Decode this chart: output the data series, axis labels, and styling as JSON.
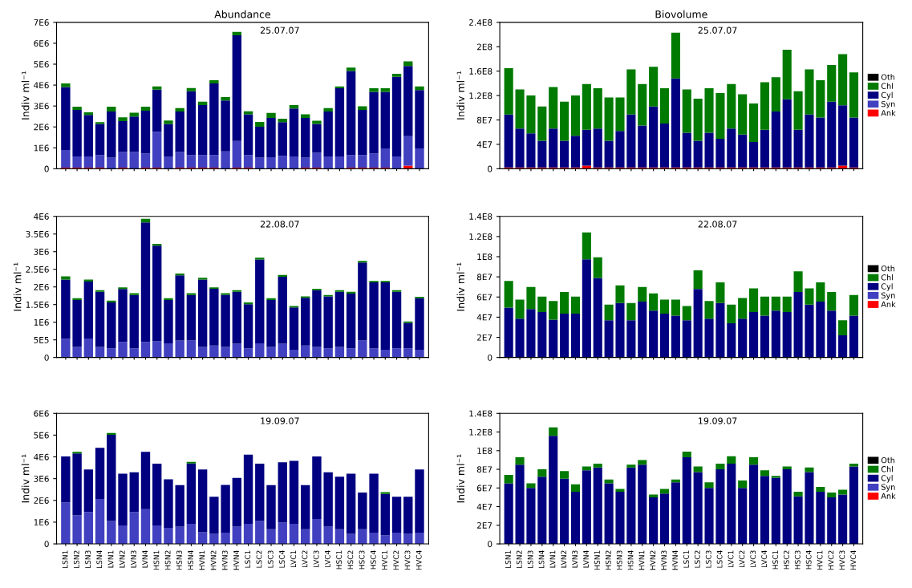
{
  "chart_data": [
    {
      "type": "bar",
      "stacked": true,
      "title": "Abundance",
      "ylabel": "Indiv ml⁻¹",
      "annotations": [
        "25.07.07"
      ],
      "tick_labels": "y",
      "categories": [
        null,
        null,
        null,
        null,
        null,
        null,
        null,
        null,
        null,
        null,
        null,
        null,
        null,
        null,
        null,
        null,
        null,
        null,
        null,
        null,
        null,
        null,
        null,
        null,
        null,
        null,
        null,
        null,
        null,
        null,
        null,
        null
      ],
      "ylim": [
        0,
        7000000.0
      ],
      "yticks": [
        0,
        {
          "value": 1000000.0,
          "label": "1E6"
        },
        {
          "value": 2000000.0,
          "label": "2E6"
        },
        {
          "value": 3000000.0,
          "label": "3E6"
        },
        {
          "value": 4000000.0,
          "label": "4E6"
        },
        {
          "value": 5000000.0,
          "label": "5E6"
        },
        {
          "value": 6000000.0,
          "label": "6E6"
        },
        {
          "value": 7000000.0,
          "label": "7E6"
        }
      ],
      "series": [
        {
          "color": "#ff0000",
          "values": [
            50000.0,
            50000.0,
            50000.0,
            50000.0,
            null,
            50000.0,
            null,
            50000.0,
            50000.0,
            null,
            50000.0,
            50000.0,
            50000.0,
            50000.0,
            null,
            50000.0,
            50000.0,
            null,
            null,
            null,
            null,
            50000.0,
            50000.0,
            null,
            null,
            50000.0,
            50000.0,
            50000.0,
            50000.0,
            null,
            150000.0,
            null
          ]
        },
        {
          "color": "#4040c0",
          "values": [
            850000.0,
            540000.0,
            540000.0,
            610000.0,
            530000.0,
            750000.0,
            800000.0,
            680000.0,
            1720000.0,
            590000.0,
            750000.0,
            610000.0,
            610000.0,
            610000.0,
            830000.0,
            1280000.0,
            610000.0,
            530000.0,
            550000.0,
            620000.0,
            590000.0,
            480000.0,
            720000.0,
            590000.0,
            590000.0,
            610000.0,
            610000.0,
            680000.0,
            920000.0,
            590000.0,
            1410000.0,
            970000.0
          ]
        },
        {
          "color": "#000080",
          "values": [
            3010000.0,
            2220000.0,
            1980000.0,
            1480000.0,
            2210000.0,
            1480000.0,
            1700000.0,
            2050000.0,
            2010000.0,
            1550000.0,
            1940000.0,
            3050000.0,
            2380000.0,
            3420000.0,
            2430000.0,
            5050000.0,
            1940000.0,
            1480000.0,
            1880000.0,
            1610000.0,
            2290000.0,
            1900000.0,
            1370000.0,
            2150000.0,
            3260000.0,
            4010000.0,
            2150000.0,
            2950000.0,
            2710000.0,
            3810000.0,
            3350000.0,
            2790000.0
          ]
        },
        {
          "color": "#007a00",
          "values": [
            170000.0,
            160000.0,
            130000.0,
            90000.0,
            230000.0,
            180000.0,
            180000.0,
            190000.0,
            160000.0,
            170000.0,
            160000.0,
            150000.0,
            170000.0,
            150000.0,
            170000.0,
            160000.0,
            150000.0,
            230000.0,
            240000.0,
            160000.0,
            160000.0,
            170000.0,
            160000.0,
            160000.0,
            90000.0,
            170000.0,
            180000.0,
            170000.0,
            170000.0,
            140000.0,
            220000.0,
            180000.0
          ]
        }
      ]
    },
    {
      "type": "bar",
      "stacked": true,
      "title": "Biovolume",
      "ylabel": "Indiv ml⁻¹",
      "annotations": [
        "25.07.07"
      ],
      "tick_labels": "y",
      "legend": "right",
      "categories": [
        null,
        null,
        null,
        null,
        null,
        null,
        null,
        null,
        null,
        null,
        null,
        null,
        null,
        null,
        null,
        null,
        null,
        null,
        null,
        null,
        null,
        null,
        null,
        null,
        null,
        null,
        null,
        null,
        null,
        null,
        null,
        null
      ],
      "ylim": [
        0,
        240000000.0
      ],
      "yticks": [
        0,
        {
          "value": 40000000.0,
          "label": "4E7"
        },
        {
          "value": 80000000.0,
          "label": "8E7"
        },
        {
          "value": 120000000.0,
          "label": "1.2E8"
        },
        {
          "value": 160000000.0,
          "label": "1.6E8"
        },
        {
          "value": 200000000.0,
          "label": "2E8"
        },
        {
          "value": 240000000.0,
          "label": "2.4E8"
        }
      ],
      "series": [
        {
          "name": "Ank",
          "color": "#ff0000",
          "values": [
            2000000.0,
            2000000.0,
            2000000.0,
            2000000.0,
            2000000.0,
            2000000.0,
            2000000.0,
            5000000.0,
            2000000.0,
            2000000.0,
            2000000.0,
            2000000.0,
            2000000.0,
            2000000.0,
            2000000.0,
            2000000.0,
            2000000.0,
            2000000.0,
            2000000.0,
            2000000.0,
            2000000.0,
            2000000.0,
            2000000.0,
            2000000.0,
            2000000.0,
            2000000.0,
            2000000.0,
            2000000.0,
            2000000.0,
            2000000.0,
            5000000.0,
            2000000.0
          ]
        },
        {
          "name": "Syn",
          "color": "#4040c0",
          "values": [
            null,
            null,
            null,
            null,
            null,
            null,
            null,
            null,
            null,
            null,
            null,
            null,
            null,
            null,
            null,
            null,
            null,
            null,
            null,
            null,
            null,
            null,
            null,
            null,
            null,
            null,
            null,
            null,
            null,
            null,
            null,
            null
          ]
        },
        {
          "name": "Cyl",
          "color": "#000080",
          "values": [
            87000000.0,
            64000000.0,
            56000000.0,
            44000000.0,
            64000000.0,
            44000000.0,
            52000000.0,
            59000000.0,
            64000000.0,
            44000000.0,
            60000000.0,
            87000000.0,
            69000000.0,
            100000000.0,
            72000000.0,
            146000000.0,
            57000000.0,
            44000000.0,
            57000000.0,
            47000000.0,
            64000000.0,
            54000000.0,
            42000000.0,
            62000000.0,
            92000000.0,
            112000000.0,
            62000000.0,
            87000000.0,
            82000000.0,
            108000000.0,
            99000000.0,
            82000000.0
          ]
        },
        {
          "name": "Chl",
          "color": "#007a00",
          "values": [
            76000000.0,
            64000000.0,
            62000000.0,
            56000000.0,
            68000000.0,
            64000000.0,
            66000000.0,
            75000000.0,
            66000000.0,
            71000000.0,
            55000000.0,
            74000000.0,
            68000000.0,
            65000000.0,
            58000000.0,
            75000000.0,
            71000000.0,
            69000000.0,
            73000000.0,
            75000000.0,
            73000000.0,
            66000000.0,
            63000000.0,
            78000000.0,
            56000000.0,
            81000000.0,
            63000000.0,
            74000000.0,
            61000000.0,
            60000000.0,
            84000000.0,
            74000000.0
          ]
        },
        {
          "name": "Oth",
          "color": "#000000",
          "values": [
            null,
            null,
            null,
            null,
            null,
            null,
            null,
            null,
            null,
            null,
            null,
            null,
            null,
            null,
            null,
            null,
            null,
            null,
            null,
            null,
            null,
            null,
            null,
            null,
            null,
            null,
            null,
            null,
            null,
            null,
            null,
            null
          ]
        }
      ]
    },
    {
      "type": "bar",
      "stacked": true,
      "ylabel": "Indiv ml⁻¹",
      "annotations": [
        "22.08.07"
      ],
      "tick_labels": "y",
      "categories": [
        null,
        null,
        null,
        null,
        null,
        null,
        null,
        null,
        null,
        null,
        null,
        null,
        null,
        null,
        null,
        null,
        null,
        null,
        null,
        null,
        null,
        null,
        null,
        null,
        null,
        null,
        null,
        null,
        null,
        null,
        null,
        null
      ],
      "ylim": [
        0,
        4000000.0
      ],
      "yticks": [
        0,
        {
          "value": 500000.0,
          "label": "5E5"
        },
        {
          "value": 1000000.0,
          "label": "1E6"
        },
        {
          "value": 1500000.0,
          "label": "1.5E6"
        },
        {
          "value": 2000000.0,
          "label": "2E6"
        },
        {
          "value": 2500000.0,
          "label": "2.5E6"
        },
        {
          "value": 3000000.0,
          "label": "3E6"
        },
        {
          "value": 3500000.0,
          "label": "3.5E6"
        },
        {
          "value": 4000000.0,
          "label": "4E6"
        }
      ],
      "series": [
        {
          "color": "#4040c0",
          "values": [
            530000.0,
            300000.0,
            540000.0,
            300000.0,
            260000.0,
            440000.0,
            260000.0,
            440000.0,
            460000.0,
            400000.0,
            480000.0,
            480000.0,
            300000.0,
            340000.0,
            300000.0,
            390000.0,
            260000.0,
            400000.0,
            300000.0,
            390000.0,
            220000.0,
            340000.0,
            300000.0,
            260000.0,
            300000.0,
            260000.0,
            480000.0,
            260000.0,
            220000.0,
            260000.0,
            260000.0,
            220000.0
          ]
        },
        {
          "color": "#000080",
          "values": [
            1680000.0,
            1330000.0,
            1610000.0,
            1560000.0,
            1300000.0,
            1500000.0,
            1510000.0,
            3390000.0,
            2710000.0,
            1230000.0,
            1850000.0,
            1290000.0,
            1910000.0,
            1610000.0,
            1480000.0,
            1470000.0,
            1250000.0,
            2380000.0,
            1330000.0,
            1900000.0,
            1200000.0,
            1350000.0,
            1610000.0,
            1470000.0,
            1560000.0,
            1550000.0,
            2210000.0,
            1870000.0,
            1910000.0,
            1600000.0,
            720000.0,
            1460000.0
          ]
        },
        {
          "color": "#007a00",
          "values": [
            90000.0,
            50000.0,
            60000.0,
            50000.0,
            50000.0,
            50000.0,
            50000.0,
            100000.0,
            50000.0,
            50000.0,
            50000.0,
            50000.0,
            50000.0,
            40000.0,
            40000.0,
            50000.0,
            50000.0,
            50000.0,
            50000.0,
            50000.0,
            40000.0,
            40000.0,
            40000.0,
            40000.0,
            50000.0,
            50000.0,
            50000.0,
            40000.0,
            40000.0,
            50000.0,
            40000.0,
            40000.0
          ]
        }
      ]
    },
    {
      "type": "bar",
      "stacked": true,
      "ylabel": "Indiv ml⁻¹",
      "annotations": [
        "22.08.07"
      ],
      "tick_labels": "y",
      "legend": "right",
      "categories": [
        null,
        null,
        null,
        null,
        null,
        null,
        null,
        null,
        null,
        null,
        null,
        null,
        null,
        null,
        null,
        null,
        null,
        null,
        null,
        null,
        null,
        null,
        null,
        null,
        null,
        null,
        null,
        null,
        null,
        null,
        null,
        null
      ],
      "ylim": [
        0,
        140000000.0
      ],
      "yticks": [
        0,
        {
          "value": 20000000.0,
          "label": "2E7"
        },
        {
          "value": 40000000.0,
          "label": "4E7"
        },
        {
          "value": 60000000.0,
          "label": "6E7"
        },
        {
          "value": 80000000.0,
          "label": "8E7"
        },
        {
          "value": 100000000.0,
          "label": "1E8"
        },
        {
          "value": 120000000.0,
          "label": "1.2E8"
        },
        {
          "value": 140000000.0,
          "label": "1.4E8"
        }
      ],
      "series": [
        {
          "name": "Ank",
          "color": "#ff0000",
          "values": [
            null,
            null,
            null,
            null,
            null,
            null,
            null,
            null,
            null,
            null,
            null,
            null,
            null,
            null,
            null,
            null,
            null,
            null,
            null,
            null,
            null,
            null,
            null,
            null,
            null,
            null,
            null,
            null,
            null,
            null,
            null,
            null
          ]
        },
        {
          "name": "Syn",
          "color": "#4040c0",
          "values": [
            null,
            null,
            null,
            null,
            null,
            null,
            null,
            null,
            null,
            null,
            null,
            null,
            null,
            null,
            null,
            null,
            null,
            null,
            null,
            null,
            null,
            null,
            null,
            null,
            null,
            null,
            null,
            null,
            null,
            null,
            null,
            null
          ]
        },
        {
          "name": "Cyl",
          "color": "#000080",
          "values": [
            49500000.0,
            38500000.0,
            48000000.0,
            45000000.0,
            37500000.0,
            43500000.0,
            43500000.0,
            97500000.0,
            79000000.0,
            37000000.0,
            54000000.0,
            37000000.0,
            55500000.0,
            46500000.0,
            43500000.0,
            41500000.0,
            37000000.0,
            68000000.0,
            38500000.0,
            54000000.0,
            34000000.0,
            38500000.0,
            45000000.0,
            41500000.0,
            46500000.0,
            45000000.0,
            65000000.0,
            52500000.0,
            55500000.0,
            46500000.0,
            22000000.0,
            41500000.0
          ]
        },
        {
          "name": "Chl",
          "color": "#007a00",
          "values": [
            26500000.0,
            19000000.0,
            22000000.0,
            15500000.0,
            18500000.0,
            21500000.0,
            17000000.0,
            26500000.0,
            20500000.0,
            15500000.0,
            17500000.0,
            17000000.0,
            14500000.0,
            17000000.0,
            14000000.0,
            16000000.0,
            14000000.0,
            18500000.0,
            17500000.0,
            20500000.0,
            18500000.0,
            20500000.0,
            23500000.0,
            19000000.0,
            14000000.0,
            15500000.0,
            20500000.0,
            16000000.0,
            19000000.0,
            18500000.0,
            15000000.0,
            20500000.0
          ]
        },
        {
          "name": "Oth",
          "color": "#000000",
          "values": [
            null,
            null,
            null,
            null,
            null,
            null,
            null,
            null,
            null,
            null,
            null,
            null,
            null,
            null,
            null,
            null,
            null,
            null,
            null,
            null,
            null,
            null,
            null,
            null,
            null,
            null,
            null,
            null,
            null,
            null,
            null,
            null
          ]
        }
      ]
    },
    {
      "type": "bar",
      "stacked": true,
      "ylabel": "Indiv ml⁻¹",
      "annotations": [
        "19.09.07"
      ],
      "categories": [
        "LSN1",
        "LSN2",
        "LSN3",
        "LSN4",
        "LVN1",
        "LVN2",
        "LVN3",
        "LVN4",
        "HSN1",
        "HSN2",
        "HSN3",
        "HSN4",
        "HVN1",
        "HVN2",
        "HVN3",
        "HVN4",
        "LSC1",
        "LSC2",
        "LSC3",
        "LSC4",
        "LVC1",
        "LVC2",
        "LVC3",
        "LVC4",
        "HSC1",
        "HSC2",
        "HSC3",
        "HSC4",
        "HVC1",
        "HVC2",
        "HVC3",
        "HVC4"
      ],
      "ylim": [
        0,
        6000000.0
      ],
      "yticks": [
        0,
        {
          "value": 1000000.0,
          "label": "1E6"
        },
        {
          "value": 2000000.0,
          "label": "2E6"
        },
        {
          "value": 3000000.0,
          "label": "3E6"
        },
        {
          "value": 4000000.0,
          "label": "4E6"
        },
        {
          "value": 5000000.0,
          "label": "5E6"
        },
        {
          "value": 6000000.0,
          "label": "6E6"
        }
      ],
      "series": [
        {
          "color": "#4040c0",
          "values": [
            1910000.0,
            1320000.0,
            1470000.0,
            2070000.0,
            1050000.0,
            850000.0,
            1470000.0,
            1600000.0,
            850000.0,
            740000.0,
            790000.0,
            920000.0,
            540000.0,
            460000.0,
            520000.0,
            790000.0,
            920000.0,
            1050000.0,
            670000.0,
            990000.0,
            920000.0,
            670000.0,
            1140000.0,
            790000.0,
            670000.0,
            460000.0,
            670000.0,
            520000.0,
            400000.0,
            520000.0,
            460000.0,
            520000.0
          ]
        },
        {
          "color": "#000080",
          "values": [
            2110000.0,
            2840000.0,
            1950000.0,
            2350000.0,
            3970000.0,
            2380000.0,
            1820000.0,
            2630000.0,
            2840000.0,
            2230000.0,
            1910000.0,
            2780000.0,
            2880000.0,
            1710000.0,
            2190000.0,
            2240000.0,
            3180000.0,
            2640000.0,
            2030000.0,
            2760000.0,
            2900000.0,
            2030000.0,
            2880000.0,
            2500000.0,
            2420000.0,
            2770000.0,
            1690000.0,
            2710000.0,
            1900000.0,
            1650000.0,
            1710000.0,
            2900000.0
          ]
        },
        {
          "color": "#007a00",
          "values": [
            null,
            70000.0,
            null,
            null,
            80000.0,
            null,
            null,
            null,
            null,
            null,
            null,
            70000.0,
            null,
            null,
            null,
            null,
            null,
            null,
            null,
            null,
            null,
            null,
            null,
            null,
            null,
            null,
            null,
            null,
            80000.0,
            null,
            null,
            null
          ]
        }
      ]
    },
    {
      "type": "bar",
      "stacked": true,
      "ylabel": "Indiv ml⁻¹",
      "annotations": [
        "19.09.07"
      ],
      "legend": "right",
      "categories": [
        "LSN1",
        "LSN2",
        "LSN3",
        "LSN4",
        "LVN1",
        "LVN2",
        "LVN3",
        "LVN4",
        "HSN1",
        "HSN2",
        "HSN3",
        "HSN4",
        "HVN1",
        "HVN2",
        "HVN3",
        "HVN4",
        "LSC1",
        "LSC2",
        "LSC3",
        "LSC4",
        "LVC1",
        "LVC2",
        "LVC3",
        "LVC4",
        "HSC1",
        "HSC2",
        "HSC3",
        "HSC4",
        "HVC1",
        "HVC2",
        "HVC3",
        "HVC4"
      ],
      "ylim": [
        0,
        140000000.0
      ],
      "yticks": [
        0,
        {
          "value": 20000000.0,
          "label": "2E7"
        },
        {
          "value": 40000000.0,
          "label": "4E7"
        },
        {
          "value": 60000000.0,
          "label": "6E7"
        },
        {
          "value": 80000000.0,
          "label": "8E7"
        },
        {
          "value": 100000000.0,
          "label": "1E8"
        },
        {
          "value": 120000000.0,
          "label": "1.2E8"
        },
        {
          "value": 140000000.0,
          "label": "1.4E8"
        }
      ],
      "series": [
        {
          "name": "Ank",
          "color": "#ff0000",
          "values": [
            null,
            null,
            null,
            null,
            null,
            null,
            null,
            null,
            null,
            null,
            null,
            null,
            null,
            null,
            null,
            null,
            null,
            null,
            null,
            null,
            null,
            null,
            null,
            null,
            null,
            null,
            null,
            null,
            null,
            null,
            null,
            null
          ]
        },
        {
          "name": "Syn",
          "color": "#4040c0",
          "values": [
            null,
            null,
            null,
            null,
            null,
            null,
            null,
            null,
            null,
            null,
            null,
            null,
            null,
            null,
            null,
            null,
            null,
            null,
            null,
            null,
            null,
            null,
            null,
            null,
            null,
            null,
            null,
            null,
            null,
            null,
            null,
            null
          ]
        },
        {
          "name": "Cyl",
          "color": "#000080",
          "values": [
            65000000.0,
            85000000.0,
            60000000.0,
            72000000.0,
            116000000.0,
            70000000.0,
            56000000.0,
            79000000.0,
            82000000.0,
            65000000.0,
            56000000.0,
            82000000.0,
            85000000.0,
            50000000.0,
            54000000.0,
            66000000.0,
            93000000.0,
            77000000.0,
            60000000.0,
            80000000.0,
            86000000.0,
            60000000.0,
            85000000.0,
            73000000.0,
            71000000.0,
            80000000.0,
            51000000.0,
            77000000.0,
            56000000.0,
            50000000.0,
            53000000.0,
            83000000.0
          ]
        },
        {
          "name": "Chl",
          "color": "#007a00",
          "values": [
            9000000.0,
            8000000.0,
            5000000.0,
            8000000.0,
            9000000.0,
            8000000.0,
            8000000.0,
            4000000.0,
            4000000.0,
            4000000.0,
            3000000.0,
            3000000.0,
            5000000.0,
            3000000.0,
            5000000.0,
            3000000.0,
            6000000.0,
            6000000.0,
            6000000.0,
            6000000.0,
            8000000.0,
            8000000.0,
            8000000.0,
            6000000.0,
            2000000.0,
            3000000.0,
            5000000.0,
            5000000.0,
            5000000.0,
            5000000.0,
            5000000.0,
            3000000.0
          ]
        },
        {
          "name": "Oth",
          "color": "#000000",
          "values": [
            null,
            null,
            null,
            null,
            null,
            null,
            null,
            null,
            null,
            null,
            null,
            null,
            null,
            null,
            null,
            null,
            null,
            null,
            null,
            null,
            null,
            null,
            null,
            null,
            null,
            null,
            null,
            null,
            null,
            null,
            null,
            null
          ]
        }
      ]
    }
  ]
}
